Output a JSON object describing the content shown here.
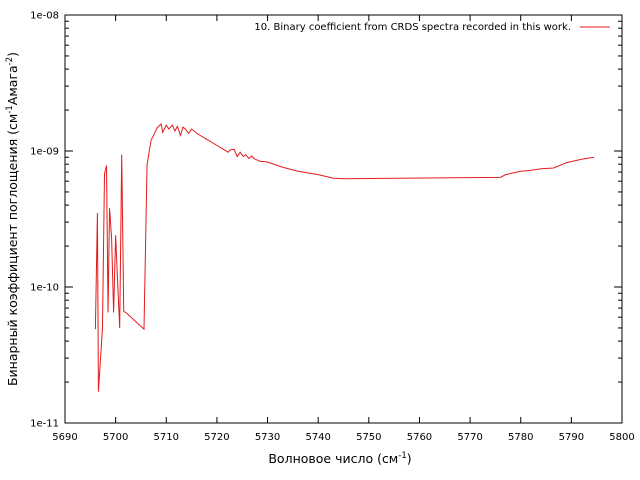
{
  "chart_data": {
    "type": "line",
    "xlabel": "Волновое число (см",
    "xlabel_sup": "-1",
    "xlabel_tail": ")",
    "ylabel": "Бинарный коэффициент поглощения (см",
    "ylabel_sup1": "-1",
    "ylabel_mid": "Амага",
    "ylabel_sup2": "-2",
    "ylabel_tail": ")",
    "xlim": [
      5690,
      5800
    ],
    "ylim": [
      1e-11,
      1e-08
    ],
    "y_scale": "log",
    "grid": false,
    "legend_position": "top-right",
    "x_ticks": [
      5690,
      5700,
      5710,
      5720,
      5730,
      5740,
      5750,
      5760,
      5770,
      5780,
      5790,
      5800
    ],
    "x_tick_labels": [
      "5690",
      "5700",
      "5710",
      "5720",
      "5730",
      "5740",
      "5750",
      "5760",
      "5770",
      "5780",
      "5790",
      "5800"
    ],
    "y_ticks": [
      1e-11,
      1e-10,
      1e-09,
      1e-08
    ],
    "y_tick_labels": [
      "1e-11",
      "1e-10",
      "1e-09",
      "1e-08"
    ],
    "series": [
      {
        "name": "10. Binary coefficient from CRDS spectra recorded in this work.",
        "color": "#e41a1c",
        "x": [
          5696.0,
          5696.4,
          5696.6,
          5697.4,
          5697.8,
          5698.2,
          5698.5,
          5698.8,
          5699.2,
          5699.6,
          5700.0,
          5700.3,
          5700.8,
          5701.2,
          5701.6,
          5702.0,
          5702.2,
          5705.6,
          5706.2,
          5707.0,
          5708.2,
          5709.0,
          5709.3,
          5710.0,
          5710.5,
          5711.2,
          5711.7,
          5712.2,
          5712.8,
          5713.3,
          5713.8,
          5714.4,
          5715.0,
          5716.0,
          5718.0,
          5720.0,
          5722.2,
          5722.6,
          5723.4,
          5724.0,
          5724.6,
          5725.2,
          5725.7,
          5726.3,
          5726.9,
          5727.3,
          5728.5,
          5730.0,
          5733.0,
          5736.0,
          5740.0,
          5743.0,
          5745.0,
          5776.0,
          5777.0,
          5778.5,
          5780.0,
          5782.0,
          5784.0,
          5786.5,
          5789.0,
          5792.0,
          5794.5
        ],
        "y": [
          4.9e-11,
          3.5e-10,
          1.7e-11,
          5e-11,
          6.8e-10,
          7.8e-10,
          6.5e-11,
          3.8e-10,
          2.3e-10,
          6.5e-11,
          2.4e-10,
          1.3e-10,
          5e-11,
          9.4e-10,
          6.6e-11,
          6.5e-11,
          6.4e-11,
          4.9e-11,
          7.9e-10,
          1.2e-09,
          1.48e-09,
          1.58e-09,
          1.37e-09,
          1.55e-09,
          1.45e-09,
          1.55e-09,
          1.4e-09,
          1.52e-09,
          1.3e-09,
          1.5e-09,
          1.45e-09,
          1.35e-09,
          1.45e-09,
          1.35e-09,
          1.22e-09,
          1.1e-09,
          9.8e-10,
          1.02e-09,
          1.03e-09,
          9.1e-10,
          9.8e-10,
          9.1e-10,
          9.4e-10,
          8.8e-10,
          9.2e-10,
          8.8e-10,
          8.4e-10,
          8.3e-10,
          7.6e-10,
          7.1e-10,
          6.7e-10,
          6.3e-10,
          6.25e-10,
          6.4e-10,
          6.7e-10,
          6.9e-10,
          7.1e-10,
          7.2e-10,
          7.4e-10,
          7.5e-10,
          8.2e-10,
          8.7e-10,
          9e-10
        ]
      }
    ]
  }
}
